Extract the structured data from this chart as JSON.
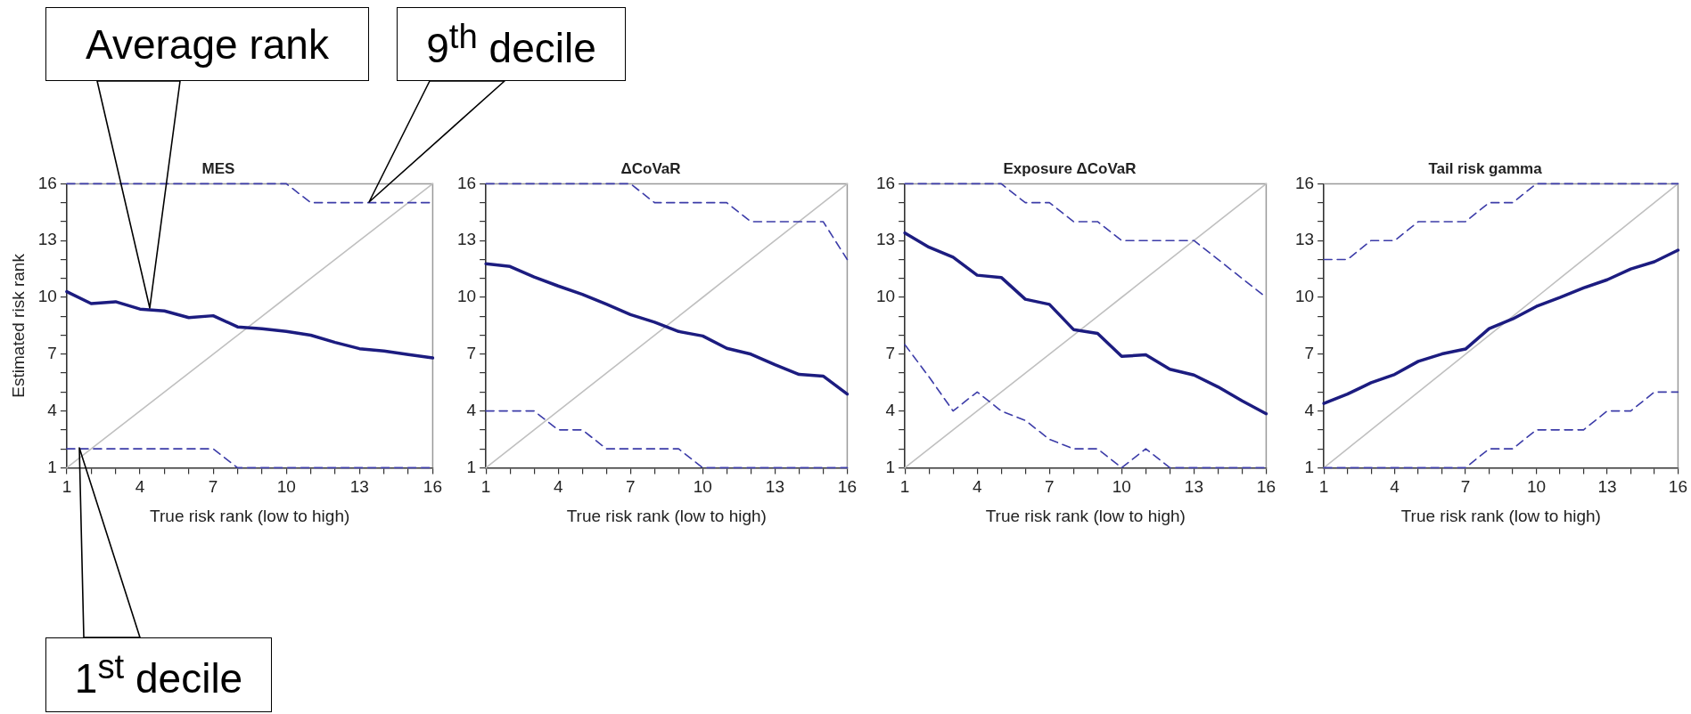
{
  "chart_data": [
    {
      "type": "line",
      "title": "MES",
      "xlabel": "True risk rank (low to high)",
      "ylabel": "Estimated risk rank",
      "x": [
        1,
        2,
        3,
        4,
        5,
        6,
        7,
        8,
        9,
        10,
        11,
        12,
        13,
        14,
        15,
        16
      ],
      "xlim": [
        1,
        16
      ],
      "ylim": [
        1,
        16
      ],
      "xticks": [
        1,
        {
          "value": 2,
          "label": null
        },
        {
          "value": 3,
          "label": null
        },
        4,
        {
          "value": 5,
          "label": null
        },
        {
          "value": 6,
          "label": null
        },
        7,
        {
          "value": 8,
          "label": null
        },
        {
          "value": 9,
          "label": null
        },
        10,
        {
          "value": 11,
          "label": null
        },
        {
          "value": 12,
          "label": null
        },
        13,
        {
          "value": 14,
          "label": null
        },
        {
          "value": 15,
          "label": null
        },
        16
      ],
      "yticks": [
        1,
        {
          "value": 2,
          "label": null
        },
        {
          "value": 3,
          "label": null
        },
        4,
        {
          "value": 5,
          "label": null
        },
        {
          "value": 6,
          "label": null
        },
        7,
        {
          "value": 8,
          "label": null
        },
        {
          "value": 9,
          "label": null
        },
        10,
        {
          "value": 11,
          "label": null
        },
        {
          "value": 12,
          "label": null
        },
        13,
        {
          "value": 14,
          "label": null
        },
        {
          "value": 15,
          "label": null
        },
        16
      ],
      "grid": false,
      "legend": false,
      "marker": "none",
      "series": [
        {
          "color": "#1c1c80",
          "line_style": "solid",
          "values": [
            10.3,
            9.67,
            9.77,
            9.38,
            9.28,
            8.93,
            9.03,
            8.44,
            8.34,
            8.2,
            8.0,
            7.62,
            7.29,
            7.17,
            6.98,
            6.8
          ]
        },
        {
          "color": "#3c3ca8",
          "line_style": "dashed",
          "values": [
            16,
            16,
            16,
            16,
            16,
            16,
            16,
            16,
            16,
            16,
            15,
            15,
            15,
            15,
            15,
            15
          ]
        },
        {
          "color": "#3c3ca8",
          "line_style": "dashed",
          "values": [
            2,
            2,
            2,
            2,
            2,
            2,
            2,
            1,
            1,
            1,
            1,
            1,
            1,
            1,
            1,
            1
          ]
        },
        {
          "color": "#c0c0c0",
          "line_style": "solid",
          "values": [
            1,
            2,
            3,
            4,
            5,
            6,
            7,
            8,
            9,
            10,
            11,
            12,
            13,
            14,
            15,
            16
          ]
        }
      ],
      "annotations": [
        "Average rank",
        "9$^{th}$ decile",
        "1$^{st}$ decile"
      ]
    },
    {
      "type": "line",
      "title": "ΔCoVaR",
      "xlabel": "True risk rank (low to high)",
      "x": [
        1,
        2,
        3,
        4,
        5,
        6,
        7,
        8,
        9,
        10,
        11,
        12,
        13,
        14,
        15,
        16
      ],
      "xlim": [
        1,
        16
      ],
      "ylim": [
        1,
        16
      ],
      "xticks": [
        1,
        {
          "value": 2,
          "label": null
        },
        {
          "value": 3,
          "label": null
        },
        4,
        {
          "value": 5,
          "label": null
        },
        {
          "value": 6,
          "label": null
        },
        7,
        {
          "value": 8,
          "label": null
        },
        {
          "value": 9,
          "label": null
        },
        10,
        {
          "value": 11,
          "label": null
        },
        {
          "value": 12,
          "label": null
        },
        13,
        {
          "value": 14,
          "label": null
        },
        {
          "value": 15,
          "label": null
        },
        16
      ],
      "yticks": [
        1,
        {
          "value": 2,
          "label": null
        },
        {
          "value": 3,
          "label": null
        },
        4,
        {
          "value": 5,
          "label": null
        },
        {
          "value": 6,
          "label": null
        },
        7,
        {
          "value": 8,
          "label": null
        },
        {
          "value": 9,
          "label": null
        },
        10,
        {
          "value": 11,
          "label": null
        },
        {
          "value": 12,
          "label": null
        },
        13,
        {
          "value": 14,
          "label": null
        },
        {
          "value": 15,
          "label": null
        },
        16
      ],
      "grid": false,
      "legend": false,
      "marker": "none",
      "series": [
        {
          "color": "#1c1c80",
          "line_style": "solid",
          "values": [
            11.77,
            11.63,
            11.08,
            10.6,
            10.16,
            9.64,
            9.09,
            8.69,
            8.2,
            7.96,
            7.31,
            7.0,
            6.44,
            5.93,
            5.84,
            4.89
          ]
        },
        {
          "color": "#3c3ca8",
          "line_style": "dashed",
          "values": [
            16,
            16,
            16,
            16,
            16,
            16,
            16,
            15,
            15,
            15,
            15,
            14,
            14,
            14,
            14,
            12
          ]
        },
        {
          "color": "#3c3ca8",
          "line_style": "dashed",
          "values": [
            4,
            4,
            4,
            3,
            3,
            2,
            2,
            2,
            2,
            1,
            1,
            1,
            1,
            1,
            1,
            1
          ]
        },
        {
          "color": "#c0c0c0",
          "line_style": "solid",
          "values": [
            1,
            2,
            3,
            4,
            5,
            6,
            7,
            8,
            9,
            10,
            11,
            12,
            13,
            14,
            15,
            16
          ]
        }
      ]
    },
    {
      "type": "line",
      "title": "Exposure ΔCoVaR",
      "xlabel": "True risk rank (low to high)",
      "x": [
        1,
        2,
        3,
        4,
        5,
        6,
        7,
        8,
        9,
        10,
        11,
        12,
        13,
        14,
        15,
        16
      ],
      "xlim": [
        1,
        16
      ],
      "ylim": [
        1,
        16
      ],
      "xticks": [
        1,
        {
          "value": 2,
          "label": null
        },
        {
          "value": 3,
          "label": null
        },
        4,
        {
          "value": 5,
          "label": null
        },
        {
          "value": 6,
          "label": null
        },
        7,
        {
          "value": 8,
          "label": null
        },
        {
          "value": 9,
          "label": null
        },
        10,
        {
          "value": 11,
          "label": null
        },
        {
          "value": 12,
          "label": null
        },
        13,
        {
          "value": 14,
          "label": null
        },
        {
          "value": 15,
          "label": null
        },
        16
      ],
      "yticks": [
        1,
        {
          "value": 2,
          "label": null
        },
        {
          "value": 3,
          "label": null
        },
        4,
        {
          "value": 5,
          "label": null
        },
        {
          "value": 6,
          "label": null
        },
        7,
        {
          "value": 8,
          "label": null
        },
        {
          "value": 9,
          "label": null
        },
        10,
        {
          "value": 11,
          "label": null
        },
        {
          "value": 12,
          "label": null
        },
        13,
        {
          "value": 14,
          "label": null
        },
        {
          "value": 15,
          "label": null
        },
        16
      ],
      "grid": false,
      "legend": false,
      "marker": "none",
      "series": [
        {
          "color": "#1c1c80",
          "line_style": "solid",
          "values": [
            13.4,
            12.65,
            12.12,
            11.17,
            11.05,
            9.9,
            9.63,
            8.3,
            8.1,
            6.88,
            6.97,
            6.2,
            5.9,
            5.27,
            4.53,
            3.85
          ]
        },
        {
          "color": "#3c3ca8",
          "line_style": "dashed",
          "values": [
            16,
            16,
            16,
            16,
            16,
            15,
            15,
            14,
            14,
            13,
            13,
            13,
            13,
            12,
            11,
            10
          ]
        },
        {
          "color": "#3c3ca8",
          "line_style": "dashed",
          "values": [
            7.5,
            5.8,
            4,
            5,
            4,
            3.5,
            2.5,
            2,
            2,
            1,
            2,
            1,
            1,
            1,
            1,
            1
          ]
        },
        {
          "color": "#c0c0c0",
          "line_style": "solid",
          "values": [
            1,
            2,
            3,
            4,
            5,
            6,
            7,
            8,
            9,
            10,
            11,
            12,
            13,
            14,
            15,
            16
          ]
        }
      ]
    },
    {
      "type": "line",
      "title": "Tail risk gamma",
      "xlabel": "True risk rank (low to high)",
      "x": [
        1,
        2,
        3,
        4,
        5,
        6,
        7,
        8,
        9,
        10,
        11,
        12,
        13,
        14,
        15,
        16
      ],
      "xlim": [
        1,
        16
      ],
      "ylim": [
        1,
        16
      ],
      "xticks": [
        1,
        {
          "value": 2,
          "label": null
        },
        {
          "value": 3,
          "label": null
        },
        4,
        {
          "value": 5,
          "label": null
        },
        {
          "value": 6,
          "label": null
        },
        7,
        {
          "value": 8,
          "label": null
        },
        {
          "value": 9,
          "label": null
        },
        10,
        {
          "value": 11,
          "label": null
        },
        {
          "value": 12,
          "label": null
        },
        13,
        {
          "value": 14,
          "label": null
        },
        {
          "value": 15,
          "label": null
        },
        16
      ],
      "yticks": [
        1,
        {
          "value": 2,
          "label": null
        },
        {
          "value": 3,
          "label": null
        },
        4,
        {
          "value": 5,
          "label": null
        },
        {
          "value": 6,
          "label": null
        },
        7,
        {
          "value": 8,
          "label": null
        },
        {
          "value": 9,
          "label": null
        },
        10,
        {
          "value": 11,
          "label": null
        },
        {
          "value": 12,
          "label": null
        },
        13,
        {
          "value": 14,
          "label": null
        },
        {
          "value": 15,
          "label": null
        },
        16
      ],
      "grid": false,
      "legend": false,
      "marker": "none",
      "series": [
        {
          "color": "#1c1c80",
          "line_style": "solid",
          "values": [
            4.4,
            4.89,
            5.49,
            5.93,
            6.62,
            7.01,
            7.27,
            8.35,
            8.86,
            9.52,
            9.99,
            10.5,
            10.93,
            11.5,
            11.88,
            12.49
          ]
        },
        {
          "color": "#3c3ca8",
          "line_style": "dashed",
          "values": [
            12,
            12,
            13,
            13,
            14,
            14,
            14,
            15,
            15,
            16,
            16,
            16,
            16,
            16,
            16,
            16
          ]
        },
        {
          "color": "#3c3ca8",
          "line_style": "dashed",
          "values": [
            1,
            1,
            1,
            1,
            1,
            1,
            1,
            2,
            2,
            3,
            3,
            3,
            4,
            4,
            5,
            5
          ]
        },
        {
          "color": "#c0c0c0",
          "line_style": "solid",
          "values": [
            1,
            2,
            3,
            4,
            5,
            6,
            7,
            8,
            9,
            10,
            11,
            12,
            13,
            14,
            15,
            16
          ]
        }
      ]
    }
  ]
}
